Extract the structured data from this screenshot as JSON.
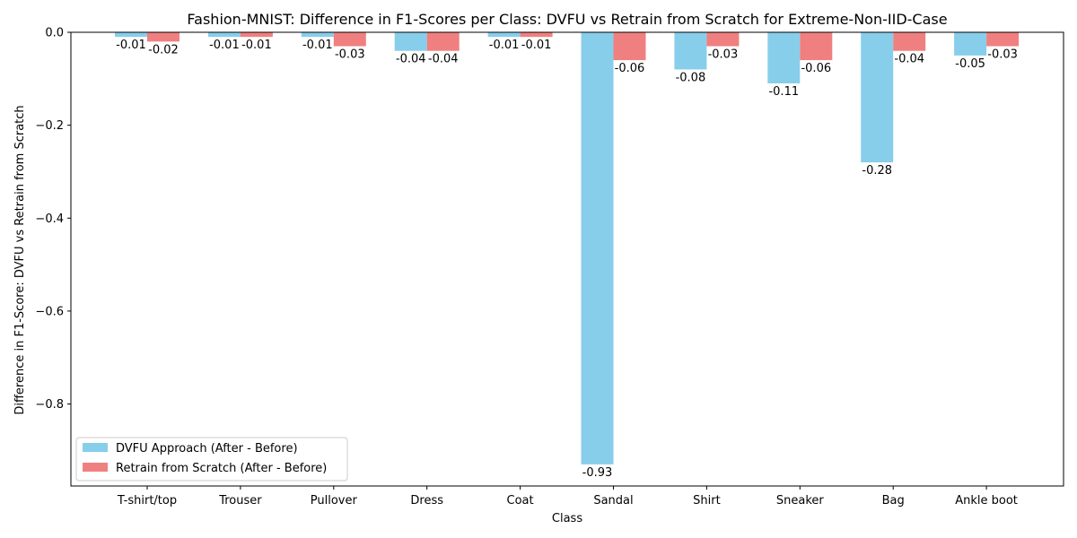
{
  "chart_data": {
    "type": "bar",
    "title": "Fashion-MNIST: Difference in F1-Scores per Class: DVFU vs Retrain from Scratch for Extreme-Non-IID-Case",
    "xlabel": "Class",
    "ylabel": "Difference in F1-Score: DVFU vs Retrain from Scratch",
    "categories": [
      "T-shirt/top",
      "Trouser",
      "Pullover",
      "Dress",
      "Coat",
      "Sandal",
      "Shirt",
      "Sneaker",
      "Bag",
      "Ankle boot"
    ],
    "series": [
      {
        "name": "DVFU Approach (After - Before)",
        "color": "#87ceeb",
        "values": [
          -0.01,
          -0.01,
          -0.01,
          -0.04,
          -0.01,
          -0.93,
          -0.08,
          -0.11,
          -0.28,
          -0.05
        ],
        "labels": [
          "-0.01",
          "-0.01",
          "-0.01",
          "-0.04",
          "-0.01",
          "-0.93",
          "-0.08",
          "-0.11",
          "-0.28",
          "-0.05"
        ]
      },
      {
        "name": "Retrain from Scratch (After - Before)",
        "color": "#f08080",
        "values": [
          -0.02,
          -0.01,
          -0.03,
          -0.04,
          -0.01,
          -0.06,
          -0.03,
          -0.06,
          -0.04,
          -0.03
        ],
        "labels": [
          "-0.02",
          "-0.01",
          "-0.03",
          "-0.04",
          "-0.01",
          "-0.06",
          "-0.03",
          "-0.06",
          "-0.04",
          "-0.03"
        ]
      }
    ],
    "ylim": [
      -0.9765,
      0.0
    ],
    "yticks": [
      0.0,
      -0.2,
      -0.4,
      -0.6,
      -0.8
    ],
    "ytick_labels": [
      "0.0",
      "−0.2",
      "−0.4",
      "−0.6",
      "−0.8"
    ],
    "grid": false,
    "legend_position": "lower-left"
  }
}
